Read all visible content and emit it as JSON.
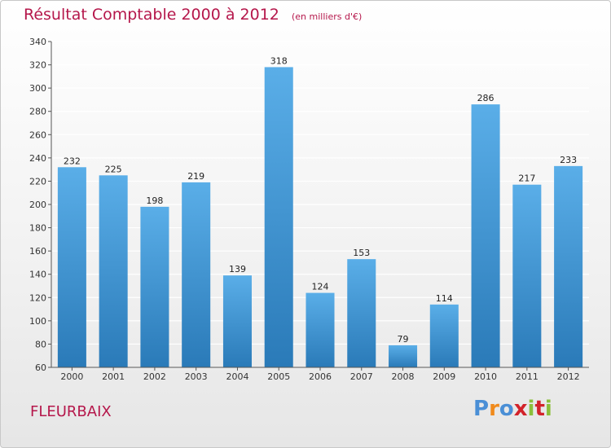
{
  "header": {
    "title": "Résultat Comptable 2000 à 2012",
    "subtitle": "(en milliers d'€)"
  },
  "footer": {
    "place": "FLEURBAIX",
    "logo": "Proxiti"
  },
  "colors": {
    "title": "#b5174b",
    "bar_top": "#5aaee8",
    "bar_bottom": "#2a7ab8",
    "grid": "#ffffff",
    "logo_letters": [
      "#4a8fd6",
      "#f08a1c",
      "#4a8fd6",
      "#d2232a",
      "#8bbf3a",
      "#d2232a",
      "#8bbf3a"
    ]
  },
  "chart_data": {
    "type": "bar",
    "title": "Résultat Comptable 2000 à 2012",
    "subtitle": "(en milliers d'€)",
    "categories": [
      "2000",
      "2001",
      "2002",
      "2003",
      "2004",
      "2005",
      "2006",
      "2007",
      "2008",
      "2009",
      "2010",
      "2011",
      "2012"
    ],
    "values": [
      232,
      225,
      198,
      219,
      139,
      318,
      124,
      153,
      79,
      114,
      286,
      217,
      233
    ],
    "ylim": [
      60,
      340
    ],
    "yticks": [
      60,
      80,
      100,
      120,
      140,
      160,
      180,
      200,
      220,
      240,
      260,
      280,
      300,
      320,
      340
    ],
    "xlabel": "",
    "ylabel": "",
    "grid": true
  }
}
